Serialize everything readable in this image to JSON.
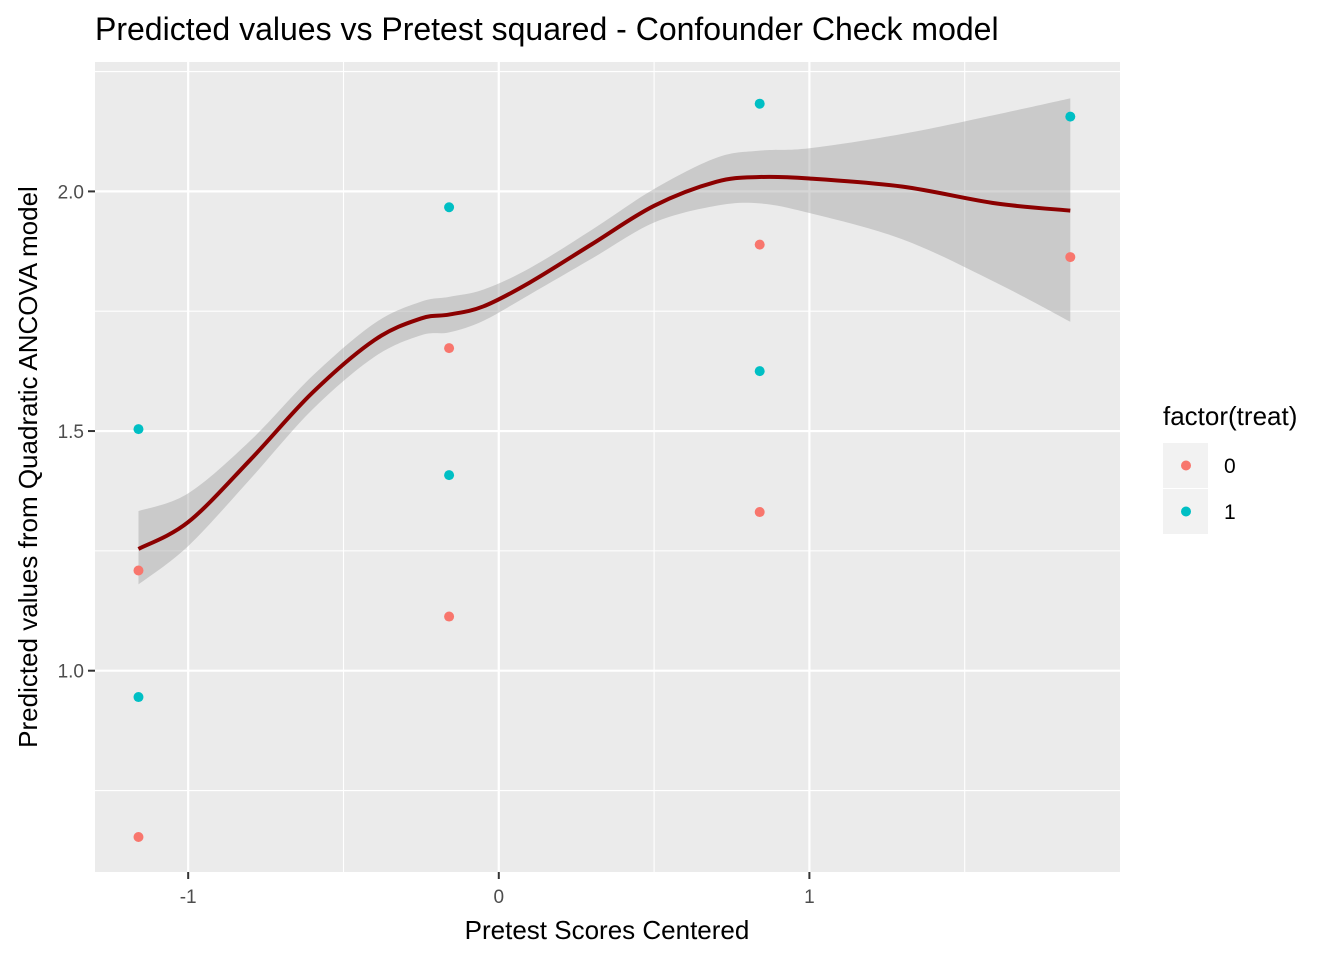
{
  "chart_data": {
    "type": "scatter",
    "title": "Predicted values vs Pretest squared - Confounder Check model",
    "xlabel": "Pretest Scores Centered",
    "ylabel": "Predicted values from Quadratic ANCOVA model",
    "xlim": [
      -1.3,
      2.0
    ],
    "ylim": [
      0.58,
      2.27
    ],
    "x_ticks": [
      -1,
      0,
      1
    ],
    "x_tick_labels": [
      "-1",
      "0",
      "1"
    ],
    "y_ticks": [
      1.0,
      1.5,
      2.0
    ],
    "y_tick_labels": [
      "1.0",
      "1.5",
      "2.0"
    ],
    "grid": true,
    "legend": {
      "title": "factor(treat)",
      "placement": "right",
      "entries": [
        {
          "label": "0",
          "color": "#F8766D"
        },
        {
          "label": "1",
          "color": "#00BFC4"
        }
      ]
    },
    "series": [
      {
        "name": "0",
        "color": "#F8766D",
        "x": [
          -1.16,
          -1.16,
          -0.16,
          -0.16,
          0.84,
          0.84,
          1.84
        ],
        "y": [
          0.653,
          1.209,
          1.113,
          1.673,
          1.331,
          1.889,
          1.863
        ]
      },
      {
        "name": "1",
        "color": "#00BFC4",
        "x": [
          -1.16,
          -1.16,
          -0.16,
          -0.16,
          0.84,
          0.84,
          1.84
        ],
        "y": [
          0.945,
          1.504,
          1.408,
          1.967,
          1.625,
          2.183,
          2.156
        ]
      }
    ],
    "smooth": {
      "color": "#8B0000",
      "ribbon_color": "#999999",
      "x": [
        -1.16,
        -1.0,
        -0.8,
        -0.6,
        -0.4,
        -0.25,
        -0.16,
        -0.05,
        0.1,
        0.3,
        0.5,
        0.7,
        0.84,
        1.0,
        1.3,
        1.6,
        1.84
      ],
      "y": [
        1.254,
        1.31,
        1.44,
        1.58,
        1.69,
        1.735,
        1.743,
        1.76,
        1.81,
        1.89,
        1.97,
        2.02,
        2.03,
        2.027,
        2.01,
        1.975,
        1.96
      ],
      "lower": [
        1.18,
        1.26,
        1.4,
        1.545,
        1.655,
        1.7,
        1.706,
        1.73,
        1.785,
        1.86,
        1.935,
        1.97,
        1.975,
        1.955,
        1.9,
        1.81,
        1.728
      ],
      "upper": [
        1.333,
        1.37,
        1.48,
        1.615,
        1.725,
        1.77,
        1.78,
        1.795,
        1.84,
        1.92,
        2.005,
        2.07,
        2.085,
        2.09,
        2.12,
        2.16,
        2.194
      ]
    }
  }
}
